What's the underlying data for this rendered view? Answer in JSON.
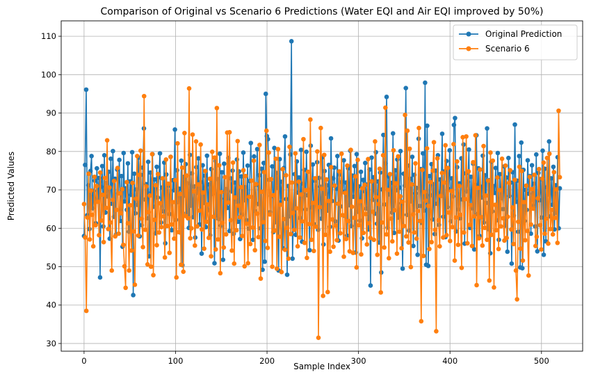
{
  "chart_data": {
    "type": "line",
    "title": "Comparison of Original vs Scenario 6 Predictions (Water EQI and Air EQI improved by 50%)",
    "xlabel": "Sample Index",
    "ylabel": "Predicted Values",
    "xlim": [
      -25,
      545
    ],
    "ylim": [
      28,
      114
    ],
    "xticks": [
      0,
      100,
      200,
      300,
      400,
      500
    ],
    "yticks": [
      30,
      40,
      50,
      60,
      70,
      80,
      90,
      100,
      110
    ],
    "grid": true,
    "legend_position": "top-right",
    "series": [
      {
        "name": "Original Prediction",
        "color": "#1f77b4",
        "marker": "circle",
        "values": [
          58.0,
          76.5,
          96.1,
          63.4,
          71.2,
          59.8,
          74.9,
          78.8,
          65.2,
          69.7,
          72.4,
          61.3,
          75.6,
          67.9,
          73.1,
          47.2,
          70.8,
          76.2,
          60.5,
          79.0,
          64.1,
          71.8,
          68.3,
          74.7,
          57.3,
          78.1,
          66.4,
          80.1,
          63.0,
          72.9,
          58.4,
          75.3,
          69.1,
          77.8,
          61.9,
          73.6,
          55.2,
          79.6,
          67.0,
          70.4,
          64.8,
          76.9,
          59.1,
          72.2,
          68.7,
          79.8,
          42.6,
          74.2,
          63.9,
          70.1,
          66.1,
          78.4,
          57.9,
          73.9,
          60.8,
          75.8,
          86.0,
          67.5,
          71.5,
          62.6,
          77.3,
          52.7,
          74.5,
          69.4,
          79.3,
          65.6,
          72.7,
          58.7,
          76.0,
          68.0,
          73.3,
          79.5,
          61.5,
          70.6,
          64.4,
          77.1,
          56.1,
          74.0,
          67.2,
          71.1,
          63.7,
          78.6,
          59.5,
          72.5,
          69.9,
          85.7,
          62.2,
          75.1,
          66.8,
          70.3,
          58.9,
          77.6,
          50.4,
          73.4,
          68.5,
          76.7,
          64.0,
          71.7,
          60.1,
          79.1,
          65.9,
          74.3,
          62.9,
          70.9,
          57.6,
          75.9,
          69.2,
          78.2,
          61.0,
          72.0,
          53.4,
          76.4,
          66.6,
          73.7,
          60.3,
          78.9,
          64.7,
          71.4,
          58.2,
          75.4,
          68.9,
          69.8,
          50.9,
          77.5,
          63.3,
          72.8,
          62.4,
          79.4,
          60.7,
          74.6,
          51.8,
          76.8,
          67.7,
          70.2,
          65.3,
          78.3,
          59.3,
          73.0,
          69.6,
          75.0,
          58.6,
          71.9,
          66.9,
          77.9,
          61.7,
          74.8,
          57.2,
          73.5,
          63.6,
          79.7,
          67.3,
          70.7,
          62.1,
          76.3,
          59.9,
          72.3,
          82.2,
          68.1,
          57.0,
          78.7,
          64.5,
          71.3,
          80.6,
          66.3,
          73.8,
          60.0,
          75.5,
          49.2,
          77.0,
          51.3,
          95.0,
          84.0,
          83.2,
          72.6,
          64.2,
          68.4,
          76.1,
          59.0,
          80.9,
          61.6,
          74.4,
          70.5,
          49.0,
          78.0,
          66.7,
          72.1,
          54.8,
          75.7,
          83.9,
          67.6,
          47.9,
          71.0,
          63.1,
          79.2,
          108.7,
          52.1,
          65.0,
          74.1,
          58.3,
          77.4,
          69.3,
          73.2,
          62.7,
          80.4,
          56.5,
          71.6,
          75.2,
          64.9,
          79.9,
          68.6,
          70.0,
          54.3,
          81.5,
          65.4,
          76.6,
          61.1,
          72.4,
          67.8,
          77.2,
          59.6,
          73.1,
          70.8,
          62.5,
          78.5,
          55.8,
          74.9,
          69.0,
          71.2,
          64.6,
          76.5,
          60.4,
          83.4,
          67.1,
          73.0,
          75.8,
          61.8,
          70.3,
          78.8,
          56.8,
          74.0,
          65.7,
          72.0,
          69.5,
          77.7,
          63.2,
          71.9,
          58.1,
          75.6,
          66.0,
          80.2,
          60.6,
          73.7,
          68.2,
          76.2,
          53.7,
          79.3,
          64.3,
          70.9,
          62.0,
          74.7,
          57.4,
          72.6,
          69.7,
          77.0,
          65.1,
          71.4,
          59.7,
          75.3,
          45.1,
          78.4,
          67.4,
          73.3,
          63.8,
          79.8,
          61.2,
          72.2,
          56.3,
          74.5,
          48.5,
          70.1,
          84.3,
          66.2,
          76.9,
          94.2,
          60.2,
          73.5,
          68.8,
          71.8,
          64.1,
          84.7,
          58.8,
          75.1,
          69.9,
          77.9,
          62.8,
          70.6,
          80.1,
          66.5,
          49.5,
          74.2,
          71.1,
          96.5,
          63.5,
          76.3,
          59.4,
          72.9,
          67.0,
          78.6,
          55.4,
          73.9,
          69.1,
          70.5,
          53.1,
          83.3,
          65.8,
          75.4,
          61.4,
          79.5,
          64.6,
          97.9,
          50.5,
          86.7,
          50.2,
          73.6,
          68.6,
          76.7,
          62.3,
          71.5,
          58.5,
          75.0,
          66.4,
          79.0,
          60.9,
          72.7,
          69.4,
          84.6,
          63.0,
          74.8,
          57.7,
          77.5,
          65.5,
          70.2,
          80.3,
          61.8,
          73.0,
          68.3,
          86.9,
          88.7,
          59.2,
          75.9,
          64.9,
          71.7,
          62.6,
          78.2,
          67.5,
          81.8,
          56.0,
          74.3,
          69.6,
          72.1,
          80.5,
          60.1,
          73.4,
          65.2,
          76.8,
          54.5,
          71.3,
          84.2,
          63.7,
          75.6,
          58.0,
          70.8,
          68.0,
          78.9,
          61.5,
          73.8,
          66.6,
          86.0,
          59.8,
          72.5,
          53.5,
          77.3,
          64.4,
          71.0,
          69.2,
          75.7,
          62.1,
          79.6,
          57.0,
          74.1,
          67.8,
          70.4,
          65.0,
          76.1,
          60.7,
          73.2,
          53.9,
          78.3,
          68.4,
          71.9,
          50.8,
          74.6,
          63.3,
          87.0,
          66.9,
          72.4,
          59.1,
          78.8,
          49.8,
          82.3,
          49.6,
          75.2,
          61.9,
          70.0,
          64.8,
          77.7,
          69.0,
          73.6,
          58.6,
          76.4,
          65.9,
          71.6,
          60.5,
          79.2,
          54.0,
          74.4,
          67.3,
          72.8,
          62.8,
          80.2,
          53.1,
          75.5,
          56.6,
          70.7,
          68.8,
          82.6,
          63.1,
          73.0,
          66.1,
          76.0,
          59.7,
          71.2,
          64.0,
          78.5,
          60.0,
          70.4
        ]
      },
      {
        "name": "Scenario 6",
        "color": "#ff7f0e",
        "marker": "circle",
        "values": [
          66.3,
          57.6,
          38.5,
          62.8,
          74.2,
          57.1,
          69.8,
          63.5,
          55.3,
          73.4,
          60.8,
          71.0,
          66.9,
          58.2,
          74.5,
          62.0,
          68.7,
          56.4,
          73.1,
          65.3,
          82.9,
          59.8,
          70.6,
          61.5,
          49.0,
          67.4,
          72.3,
          57.9,
          64.8,
          75.7,
          58.6,
          69.1,
          63.9,
          70.2,
          55.7,
          50.1,
          44.5,
          72.0,
          61.3,
          49.0,
          66.0,
          54.2,
          71.8,
          59.2,
          45.3,
          67.7,
          78.8,
          58.1,
          73.9,
          80.2,
          62.5,
          55.1,
          94.4,
          59.6,
          70.9,
          50.6,
          64.2,
          68.5,
          50.0,
          79.3,
          47.8,
          62.2,
          71.2,
          55.6,
          74.1,
          58.9,
          66.5,
          60.3,
          73.0,
          63.1,
          52.4,
          77.9,
          60.6,
          71.6,
          53.6,
          78.6,
          61.0,
          66.8,
          57.3,
          72.5,
          47.2,
          82.1,
          59.0,
          68.9,
          50.5,
          75.8,
          48.7,
          84.8,
          63.2,
          73.7,
          62.6,
          96.4,
          57.4,
          60.0,
          84.4,
          69.6,
          55.5,
          82.6,
          60.5,
          71.4,
          64.6,
          81.8,
          59.7,
          69.3,
          54.7,
          74.9,
          61.7,
          66.2,
          57.5,
          72.9,
          52.7,
          79.9,
          63.0,
          78.4,
          54.5,
          91.3,
          57.1,
          76.4,
          48.3,
          69.4,
          61.4,
          55.0,
          73.3,
          58.4,
          84.9,
          66.7,
          85.0,
          62.1,
          54.2,
          77.1,
          50.8,
          68.0,
          59.5,
          82.7,
          65.9,
          62.9,
          70.7,
          58.0,
          75.1,
          50.1,
          73.6,
          61.2,
          50.9,
          68.2,
          55.9,
          72.4,
          60.2,
          77.6,
          54.3,
          71.5,
          63.8,
          57.7,
          81.7,
          46.9,
          69.5,
          61.6,
          74.6,
          56.7,
          85.4,
          54.9,
          79.7,
          63.6,
          72.8,
          50.0,
          68.6,
          59.4,
          78.1,
          49.5,
          80.6,
          57.8,
          66.1,
          48.6,
          75.4,
          62.4,
          54.4,
          73.8,
          60.1,
          52.1,
          81.2,
          58.5,
          71.9,
          64.0,
          59.6,
          79.5,
          65.2,
          55.3,
          72.1,
          57.6,
          68.8,
          61.8,
          83.2,
          56.2,
          69.9,
          52.3,
          74.7,
          61.1,
          88.3,
          57.0,
          66.6,
          54.1,
          73.0,
          60.4,
          80.0,
          31.5,
          65.5,
          86.1,
          70.3,
          42.4,
          79.1,
          58.3,
          72.7,
          43.4,
          67.1,
          53.9,
          75.9,
          62.3,
          55.2,
          71.1,
          60.7,
          56.9,
          66.4,
          74.8,
          58.7,
          79.4,
          63.4,
          52.6,
          69.2,
          57.2,
          76.3,
          61.9,
          54.0,
          80.4,
          65.6,
          53.6,
          62.7,
          73.5,
          49.8,
          77.8,
          60.8,
          67.0,
          53.2,
          70.4,
          58.8,
          71.3,
          63.7,
          55.8,
          78.0,
          61.3,
          57.5,
          72.2,
          64.3,
          57.0,
          82.6,
          68.1,
          53.1,
          66.3,
          75.5,
          43.3,
          61.5,
          79.0,
          55.0,
          91.4,
          58.4,
          70.0,
          52.2,
          74.1,
          62.5,
          56.6,
          80.3,
          64.7,
          71.7,
          53.4,
          78.7,
          59.1,
          68.3,
          54.8,
          66.9,
          60.6,
          89.5,
          57.9,
          85.4,
          56.3,
          80.7,
          49.9,
          71.4,
          63.6,
          58.9,
          76.9,
          57.3,
          64.5,
          86.1,
          61.9,
          35.8,
          75.2,
          52.8,
          69.4,
          67.2,
          80.8,
          65.8,
          54.6,
          72.0,
          56.4,
          75.0,
          82.4,
          59.6,
          33.2,
          78.2,
          62.1,
          55.3,
          68.4,
          74.4,
          57.6,
          71.9,
          81.6,
          58.2,
          75.7,
          64.1,
          56.7,
          69.7,
          60.3,
          81.9,
          51.6,
          62.8,
          77.4,
          55.7,
          71.0,
          63.5,
          49.7,
          83.7,
          58.9,
          67.6,
          83.9,
          56.1,
          74.8,
          60.9,
          66.0,
          55.4,
          77.2,
          63.1,
          84.2,
          45.2,
          70.5,
          57.4,
          75.3,
          62.9,
          55.5,
          81.4,
          60.1,
          68.5,
          57.0,
          72.4,
          46.4,
          79.7,
          58.3,
          77.6,
          44.6,
          66.1,
          59.5,
          73.2,
          54.6,
          69.9,
          60.5,
          78.1,
          62.6,
          56.8,
          76.3,
          57.5,
          63.0,
          71.8,
          75.1,
          59.7,
          65.4,
          55.9,
          72.6,
          49.0,
          41.5,
          61.7,
          76.0,
          54.7,
          74.9,
          51.6,
          66.8,
          56.9,
          71.1,
          59.3,
          47.7,
          73.4,
          61.0,
          70.2,
          65.1,
          73.9,
          55.4,
          57.8,
          67.8,
          75.4,
          60.8,
          54.5,
          72.9,
          77.1,
          58.6,
          62.5,
          78.3,
          56.0,
          79.4,
          59.8,
          64.8,
          58.4,
          74.6,
          62.7,
          70.1,
          56.2,
          90.6,
          73.3
        ]
      }
    ]
  }
}
